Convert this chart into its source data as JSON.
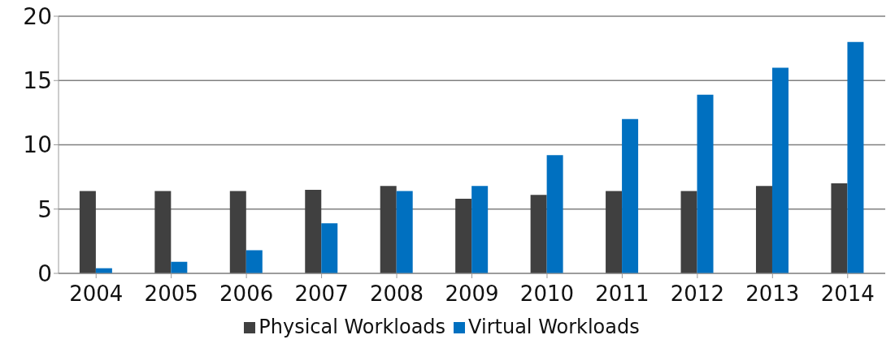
{
  "chart_data": {
    "type": "bar",
    "categories": [
      "2004",
      "2005",
      "2006",
      "2007",
      "2008",
      "2009",
      "2010",
      "2011",
      "2012",
      "2013",
      "2014"
    ],
    "series": [
      {
        "name": "Physical Workloads",
        "color": "#404040",
        "values": [
          6.4,
          6.4,
          6.4,
          6.5,
          6.8,
          5.8,
          6.1,
          6.4,
          6.4,
          6.8,
          7
        ]
      },
      {
        "name": "Virtual Workloads",
        "color": "#0070c0",
        "values": [
          0.4,
          0.9,
          1.8,
          3.9,
          6.4,
          6.8,
          9.2,
          12,
          13.9,
          16,
          18
        ]
      }
    ],
    "ylim": [
      0,
      20
    ],
    "yticks": [
      0,
      5,
      10,
      15,
      20
    ],
    "grid": "y",
    "legend": "bottom"
  }
}
